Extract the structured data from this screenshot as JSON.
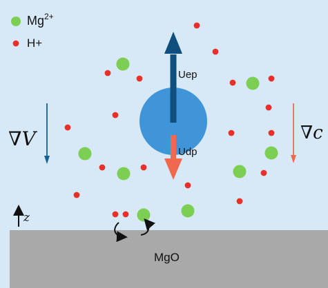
{
  "colors": {
    "fluid": "#d7e8f6",
    "substrate": "#a9a9a9",
    "mg_ion": "#7ccf52",
    "h_ion": "#e8302b",
    "particle": "#3f95d8",
    "uep_arrow": "#0f4f7d",
    "udp_arrow": "#f0694f",
    "grad_v_arrow": "#175f95",
    "grad_c_arrow": "#ef6a51",
    "black": "#111111"
  },
  "legend": {
    "mg_label": "Mg",
    "mg_charge": "2+",
    "h_label": "H+"
  },
  "labels": {
    "uep": "Uep",
    "udp": "Udp",
    "grad_v": "∇V",
    "grad_c": "∇c",
    "z_axis": "z",
    "substrate": "MgO"
  },
  "icons": {
    "mg_ion": "green-circle",
    "h_ion": "red-dot",
    "particle": "blue-sphere",
    "swirl": "curved-arrow"
  }
}
